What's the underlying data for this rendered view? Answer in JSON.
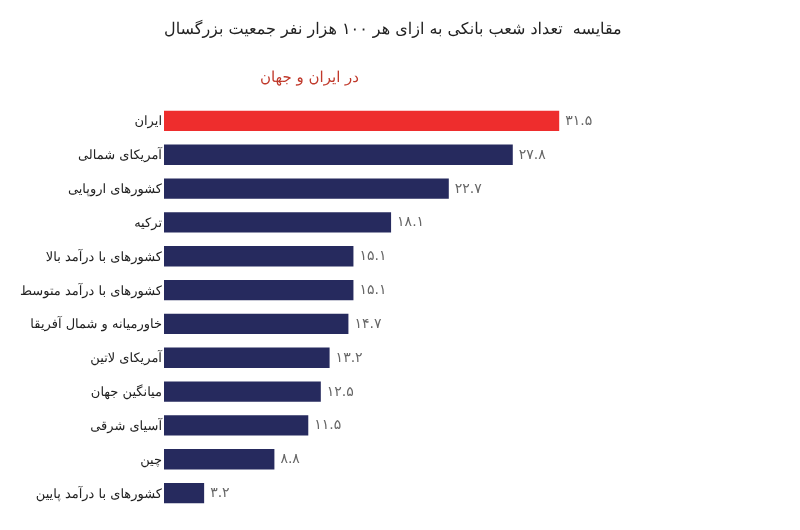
{
  "chart_data": {
    "type": "bar",
    "orientation": "horizontal",
    "title": "مقایسه  تعداد شعب بانکی به ازای هر ۱۰۰ هزار نفر جمعیت بزرگسال",
    "subtitle": "در ایران و جهان",
    "categories": [
      "ایران",
      "آمریکای شمالی",
      "کشورهای اروپایی",
      "ترکیه",
      "کشورهای با درآمد بالا",
      "کشورهای با درآمد متوسط",
      "خاورمیانه و شمال آفریقا",
      "آمریکای لاتین",
      "میانگین جهان",
      "آسیای شرقی",
      "چین",
      "کشورهای با درآمد پایین"
    ],
    "values": [
      31.5,
      27.8,
      22.7,
      18.1,
      15.1,
      15.1,
      14.7,
      13.2,
      12.5,
      11.5,
      8.8,
      3.2
    ],
    "value_labels": [
      "۳۱.۵",
      "۲۷.۸",
      "۲۲.۷",
      "۱۸.۱",
      "۱۵.۱",
      "۱۵.۱",
      "۱۴.۷",
      "۱۳.۲",
      "۱۲.۵",
      "۱۱.۵",
      "۸.۸",
      "۳.۲"
    ],
    "colors": [
      "#ee2d2d",
      "#262a5e",
      "#262a5e",
      "#262a5e",
      "#262a5e",
      "#262a5e",
      "#262a5e",
      "#262a5e",
      "#262a5e",
      "#262a5e",
      "#262a5e",
      "#262a5e"
    ],
    "legend": false
  }
}
